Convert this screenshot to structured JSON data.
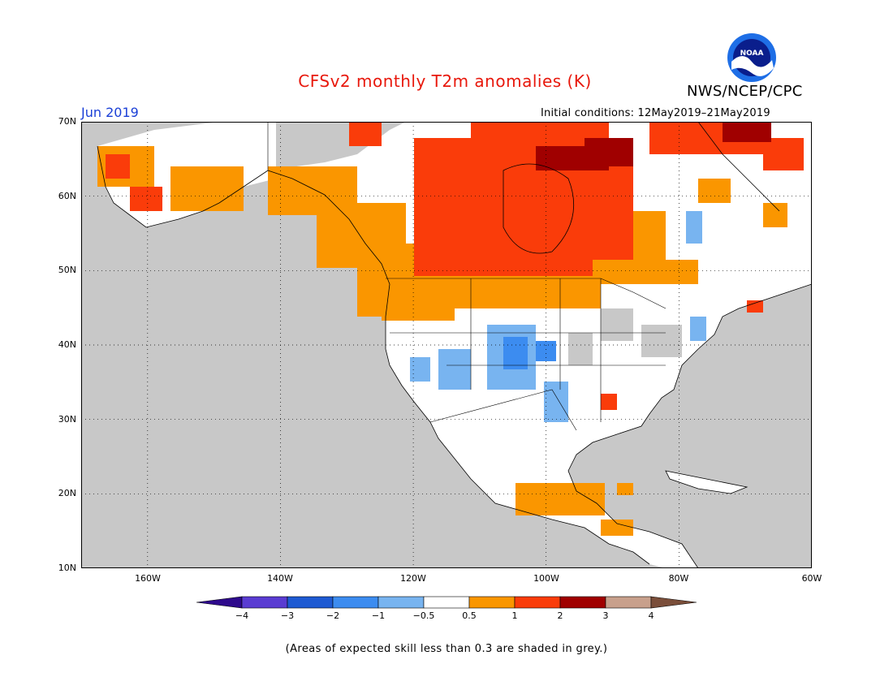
{
  "header": {
    "title": "CFSv2 monthly T2m anomalies (K)",
    "agency": "NWS/NCEP/CPC",
    "month": "Jun 2019",
    "initial_conditions": "Initial conditions: 12May2019–21May2019",
    "logo_text": "NOAA"
  },
  "map": {
    "lat_labels": [
      "70N",
      "60N",
      "50N",
      "40N",
      "30N",
      "20N",
      "10N"
    ],
    "lon_labels": [
      "160W",
      "140W",
      "120W",
      "100W",
      "80W",
      "60W"
    ],
    "extent": {
      "lon": [
        -170,
        -60
      ],
      "lat": [
        10,
        70
      ]
    },
    "land_color": "#ffffff",
    "ocean_color": "#c8c8c8",
    "anomaly_regions": [
      {
        "name": "Central Canada",
        "anomaly_k": "1 to 2",
        "color": "#fa3c0a"
      },
      {
        "name": "Hudson Bay north / Baffin",
        "anomaly_k": "2 to 3",
        "color": "#a00000"
      },
      {
        "name": "Pacific Northwest / BC coast",
        "anomaly_k": "0.5 to 1",
        "color": "#fa9600"
      },
      {
        "name": "Alaska",
        "anomaly_k": "0.5 to 2",
        "color": "#fa9600"
      },
      {
        "name": "Southern Rockies / Southwest US",
        "anomaly_k": "-1 to -0.5",
        "color": "#78b4f0"
      },
      {
        "name": "Mexico Pacific coast",
        "anomaly_k": "0.5 to 1",
        "color": "#fa9600"
      }
    ]
  },
  "legend": {
    "labels": [
      "−4",
      "−3",
      "−2",
      "−1",
      "−0.5",
      "0.5",
      "1",
      "2",
      "3",
      "4"
    ],
    "colors": [
      "#2e0a8c",
      "#5a3cd2",
      "#1e5ad2",
      "#3c8cf0",
      "#78b4f0",
      "#ffffff",
      "#fa9600",
      "#fa3c0a",
      "#a00000",
      "#c8a08c",
      "#7a4e3a"
    ]
  },
  "footnote": "(Areas of expected skill less than 0.3 are shaded in grey.)"
}
